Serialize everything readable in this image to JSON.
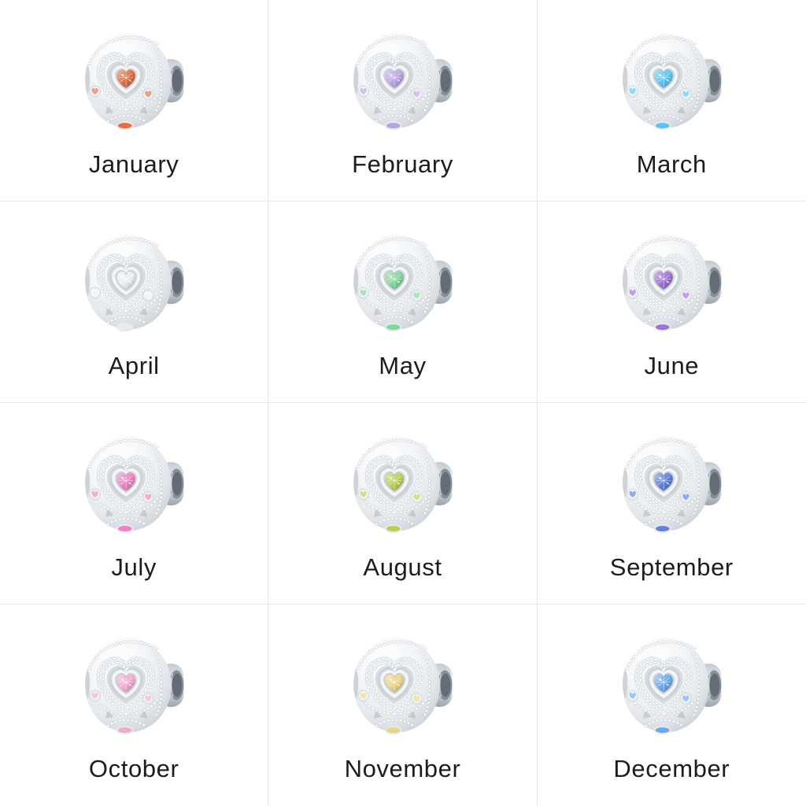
{
  "theme": {
    "background": "#ffffff",
    "grid_line_color": "#e8e8e8",
    "label_color": "#1c1c1c",
    "metal_light": "#ffffff",
    "metal_mid": "#e3e7eb",
    "metal_dark": "#aeb6bf"
  },
  "charm": {
    "name": "heart-birthstone-charm-bead"
  },
  "months": [
    {
      "label": "January",
      "gem_color": "#e06a3e"
    },
    {
      "label": "February",
      "gem_color": "#b9a0e2"
    },
    {
      "label": "March",
      "gem_color": "#59c3ee"
    },
    {
      "label": "April",
      "gem_color": "#e9edf1"
    },
    {
      "label": "May",
      "gem_color": "#7ed49a"
    },
    {
      "label": "June",
      "gem_color": "#9a6fd2"
    },
    {
      "label": "July",
      "gem_color": "#ee7fc2"
    },
    {
      "label": "August",
      "gem_color": "#b8cd54"
    },
    {
      "label": "September",
      "gem_color": "#5b7fd6"
    },
    {
      "label": "October",
      "gem_color": "#f3a8cf"
    },
    {
      "label": "November",
      "gem_color": "#e9d383"
    },
    {
      "label": "December",
      "gem_color": "#6aa6e8"
    }
  ]
}
